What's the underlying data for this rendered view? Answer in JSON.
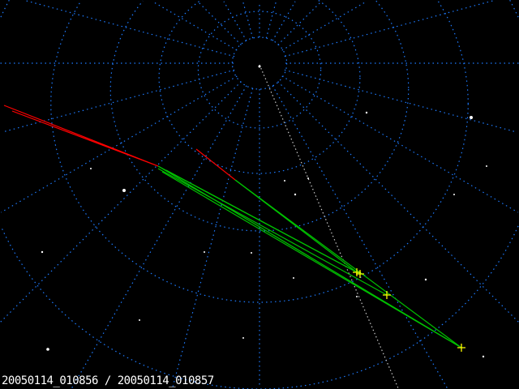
{
  "caption": {
    "frame_start": "20050114_010856",
    "separator": "/",
    "frame_end": "20050114_010857"
  },
  "colors": {
    "background": "#000000",
    "grid": "#1e7bff",
    "meridian": "#c8c8c8",
    "meteor_head": "#ff0000",
    "meteor_track": "#00c000",
    "marker": "#ffff00",
    "star": "#ffffff"
  }
}
